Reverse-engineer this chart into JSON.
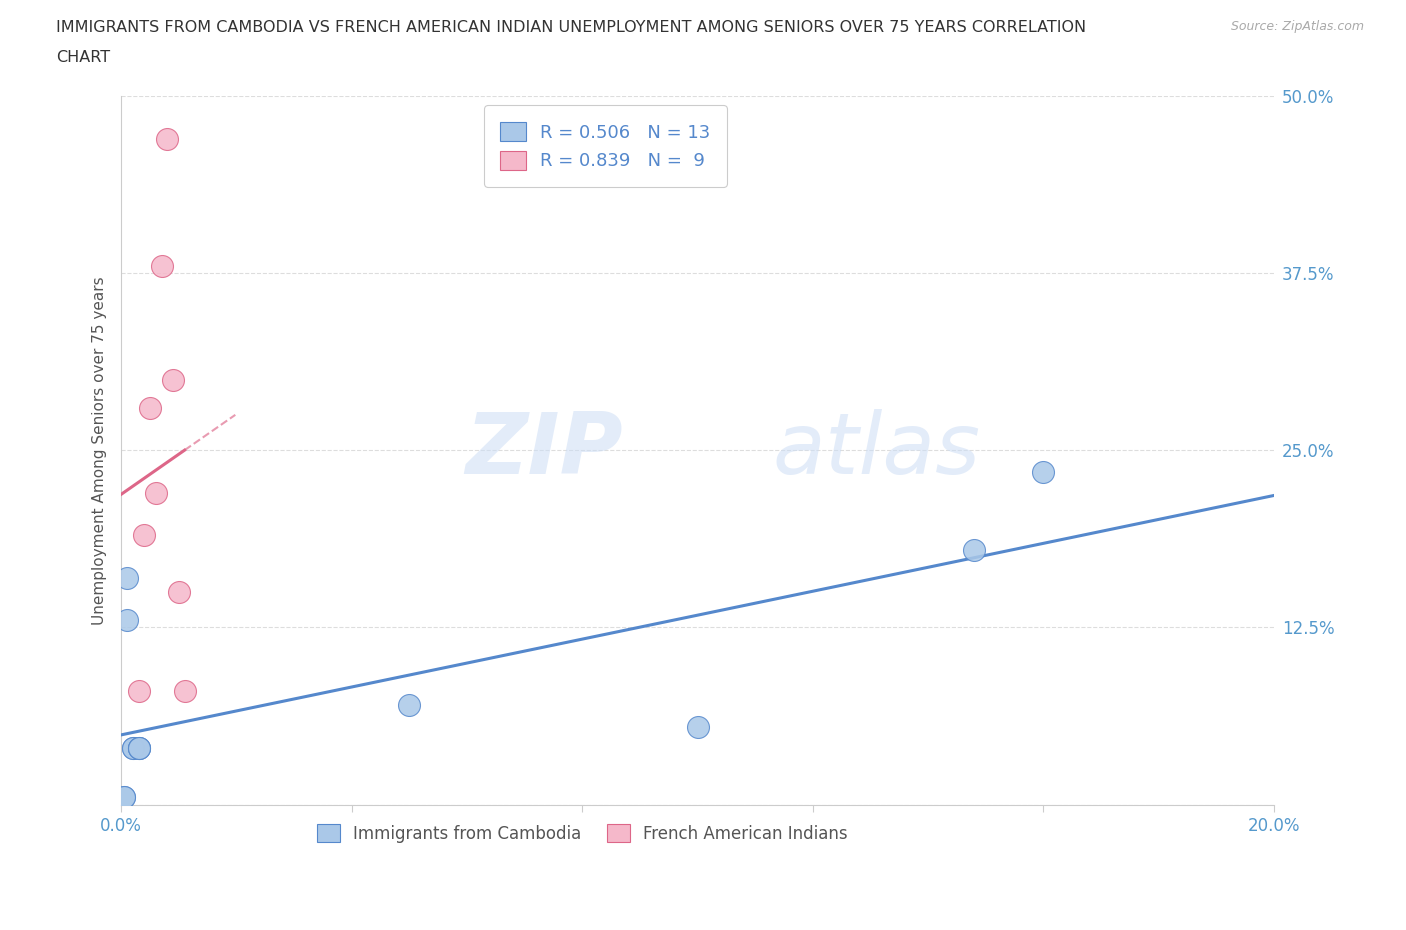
{
  "title_line1": "IMMIGRANTS FROM CAMBODIA VS FRENCH AMERICAN INDIAN UNEMPLOYMENT AMONG SENIORS OVER 75 YEARS CORRELATION",
  "title_line2": "CHART",
  "source": "Source: ZipAtlas.com",
  "ylabel": "Unemployment Among Seniors over 75 years",
  "xmin": 0.0,
  "xmax": 0.2,
  "ymin": 0.0,
  "ymax": 0.5,
  "xticks": [
    0.0,
    0.04,
    0.08,
    0.12,
    0.16,
    0.2
  ],
  "yticks": [
    0.0,
    0.125,
    0.25,
    0.375,
    0.5
  ],
  "ytick_labels": [
    "",
    "12.5%",
    "25.0%",
    "37.5%",
    "50.0%"
  ],
  "cambodia_x": [
    0.0005,
    0.0005,
    0.001,
    0.001,
    0.002,
    0.002,
    0.003,
    0.003,
    0.003,
    0.05,
    0.1,
    0.148,
    0.16
  ],
  "cambodia_y": [
    0.005,
    0.005,
    0.13,
    0.16,
    0.04,
    0.04,
    0.04,
    0.04,
    0.04,
    0.07,
    0.055,
    0.18,
    0.235
  ],
  "french_x": [
    0.003,
    0.004,
    0.005,
    0.006,
    0.007,
    0.008,
    0.009,
    0.01,
    0.011
  ],
  "french_y": [
    0.08,
    0.19,
    0.28,
    0.22,
    0.38,
    0.47,
    0.3,
    0.15,
    0.08
  ],
  "cambodia_color": "#aac8e8",
  "french_color": "#f5b8ca",
  "cambodia_line_color": "#5588cc",
  "french_line_color": "#dd6688",
  "cambodia_R": 0.506,
  "cambodia_N": 13,
  "french_R": 0.839,
  "french_N": 9,
  "legend_label_cambodia": "Immigrants from Cambodia",
  "legend_label_french": "French American Indians",
  "watermark_zip": "ZIP",
  "watermark_atlas": "atlas",
  "grid_color": "#dddddd",
  "background_color": "#ffffff",
  "title_color": "#333333",
  "tick_color": "#5599cc",
  "ylabel_color": "#555555",
  "legend_text_color": "#5588cc",
  "source_color": "#aaaaaa"
}
